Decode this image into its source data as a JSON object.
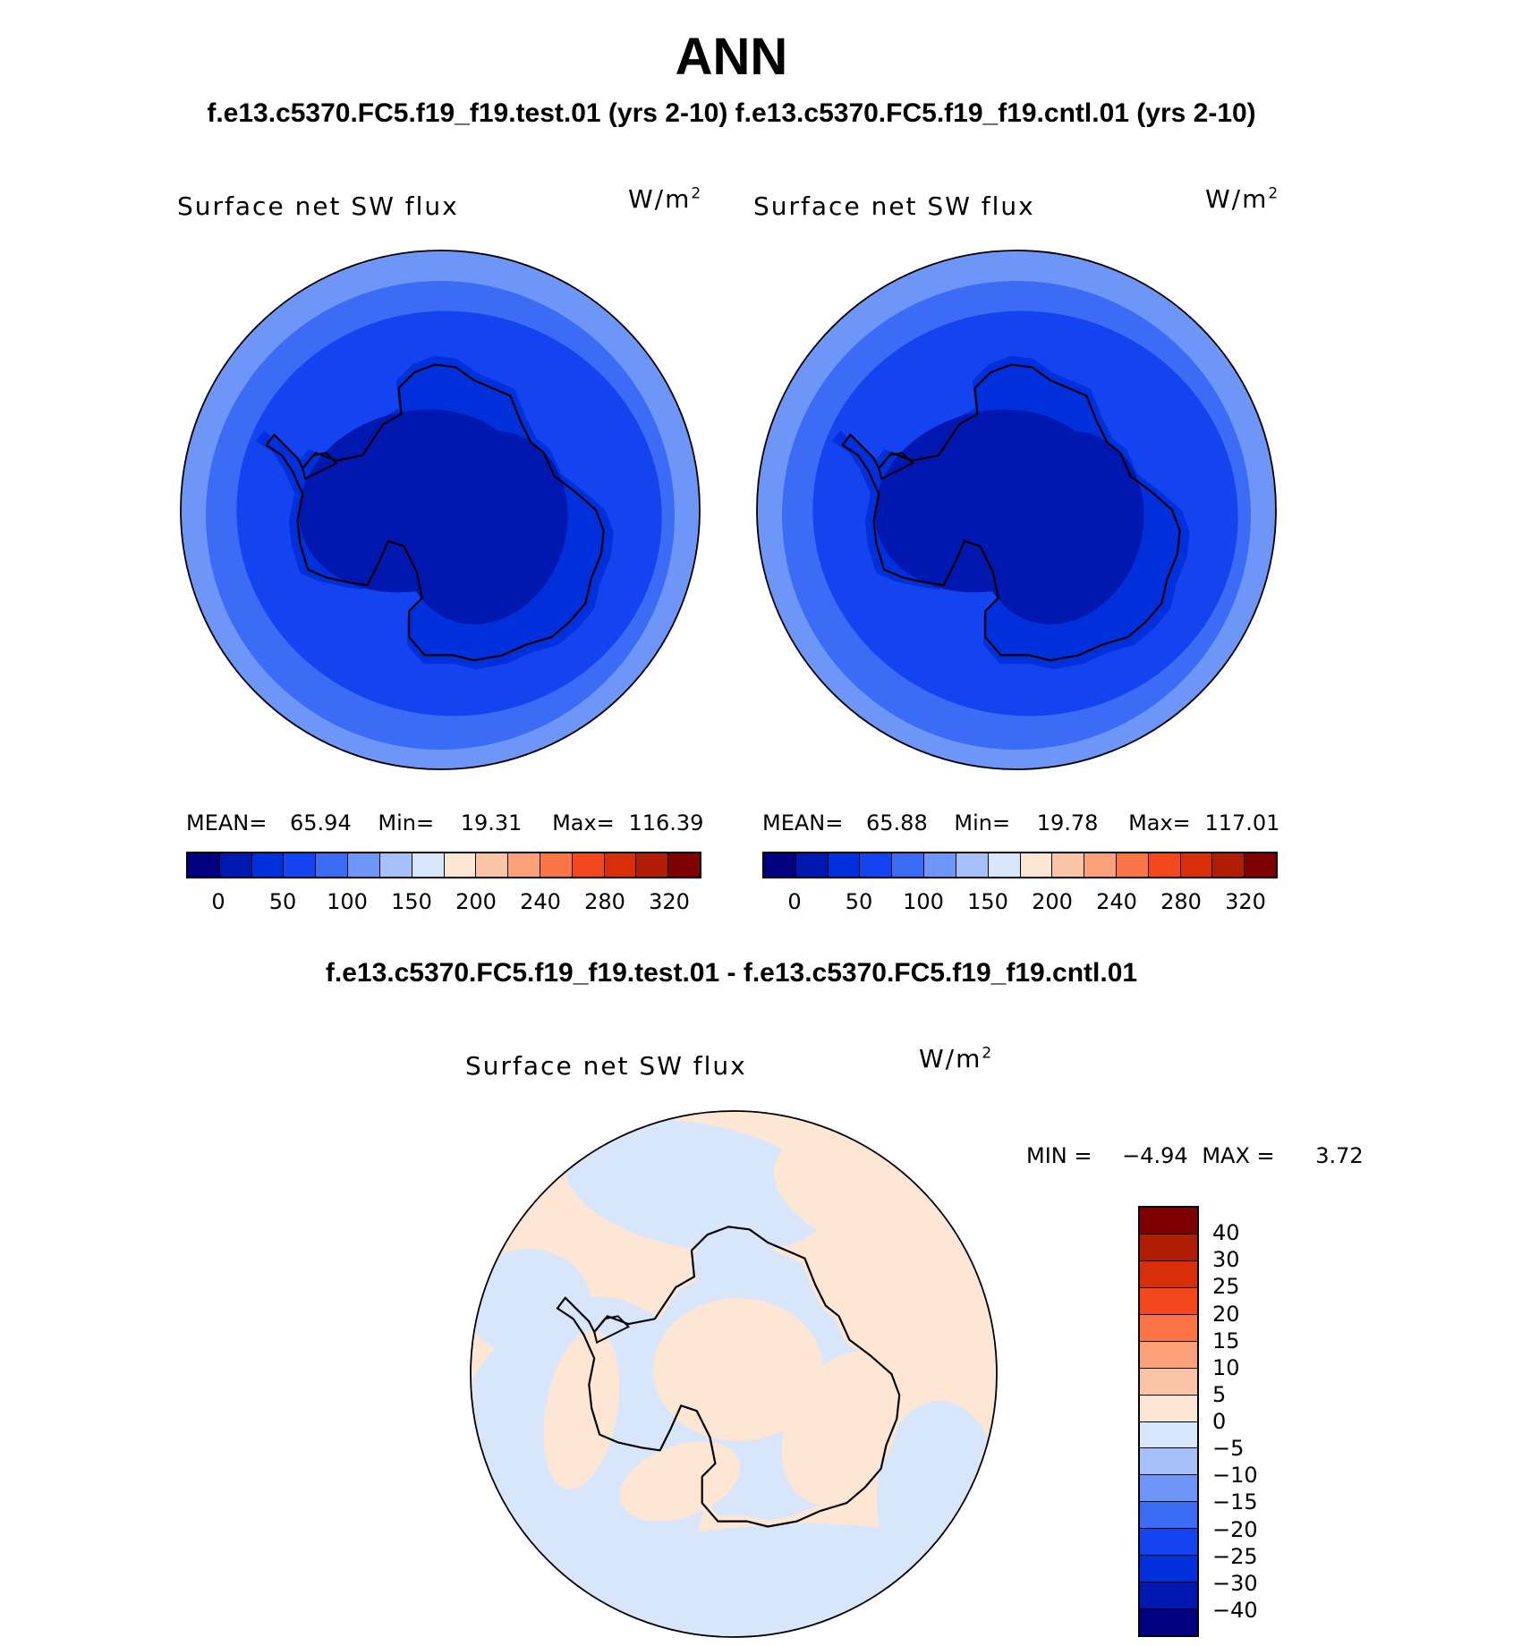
{
  "header": {
    "title": "ANN",
    "subtitle": "f.e13.c5370.FC5.f19_f19.test.01 (yrs 2-10) f.e13.c5370.FC5.f19_f19.cntl.01 (yrs 2-10)"
  },
  "panels": [
    {
      "label": "Surface net SW flux",
      "units": "W/m",
      "units_sup": "2",
      "stats": {
        "mean_label": "MEAN=",
        "mean": "65.94",
        "min_label": "Min=",
        "min": "19.31",
        "max_label": "Max=",
        "max": "116.39"
      }
    },
    {
      "label": "Surface net SW flux",
      "units": "W/m",
      "units_sup": "2",
      "stats": {
        "mean_label": "MEAN=",
        "mean": "65.88",
        "min_label": "Min=",
        "min": "19.78",
        "max_label": "Max=",
        "max": "117.01"
      }
    }
  ],
  "colorbar": {
    "colors": [
      "#000080",
      "#0018b0",
      "#0030dc",
      "#1444f0",
      "#3c6cf6",
      "#6e96f8",
      "#a6c0fa",
      "#d8e6fc",
      "#fde6d4",
      "#fcc4a6",
      "#fca07a",
      "#fa7446",
      "#f5471c",
      "#d82e0a",
      "#b01c04",
      "#7e0000"
    ],
    "tick_labels": [
      "0",
      "50",
      "100",
      "150",
      "200",
      "240",
      "280",
      "320"
    ]
  },
  "diff": {
    "subtitle": "f.e13.c5370.FC5.f19_f19.test.01 - f.e13.c5370.FC5.f19_f19.cntl.01",
    "label": "Surface net SW flux",
    "units": "W/m",
    "units_sup": "2",
    "stats": {
      "min_label": "MIN =",
      "min": "−4.94",
      "max_label": "MAX =",
      "max": "3.72"
    },
    "colorbar": {
      "colors": [
        "#7e0000",
        "#b01c04",
        "#d82e0a",
        "#f5471c",
        "#fa7446",
        "#fca07a",
        "#fcc4a6",
        "#fde6d4",
        "#d8e6fc",
        "#a6c0fa",
        "#6e96f8",
        "#3c6cf6",
        "#1444f0",
        "#0030dc",
        "#0018b0",
        "#000080"
      ],
      "tick_labels": [
        "40",
        "30",
        "25",
        "20",
        "15",
        "10",
        "5",
        "0",
        "−5",
        "−10",
        "−15",
        "−20",
        "−25",
        "−30",
        "−40"
      ]
    }
  },
  "map_palette": {
    "ocean_outer": "#6e96f8",
    "ocean_mid": "#3c6cf6",
    "ocean_inner": "#1444f0",
    "land": "#0030dc",
    "plateau": "#0018b0",
    "diff_pos": "#fde6d4",
    "diff_neg": "#d8e6fc",
    "coast": "#000000"
  }
}
